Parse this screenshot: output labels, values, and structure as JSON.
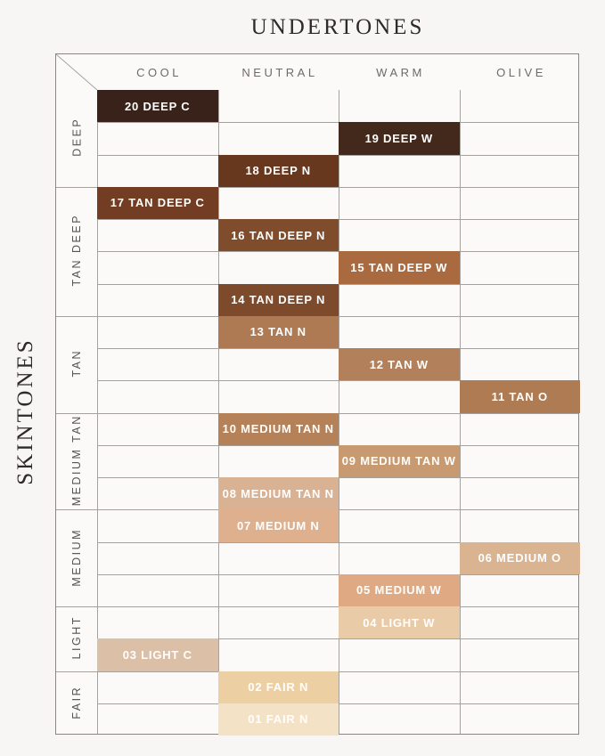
{
  "page": {
    "background": "#f7f6f4",
    "grid_line_color": "#a5a29d",
    "outer_border_color": "#8a8783"
  },
  "chart_data": {
    "type": "table",
    "title": "UNDERTONES",
    "row_axis_label": "SKINTONES",
    "columns": [
      "COOL",
      "NEUTRAL",
      "WARM",
      "OLIVE"
    ],
    "row_groups": [
      {
        "label": "DEEP",
        "rows": 3
      },
      {
        "label": "TAN DEEP",
        "rows": 4
      },
      {
        "label": "TAN",
        "rows": 3
      },
      {
        "label": "MEDIUM TAN",
        "rows": 3
      },
      {
        "label": "MEDIUM",
        "rows": 3
      },
      {
        "label": "LIGHT",
        "rows": 2
      },
      {
        "label": "FAIR",
        "rows": 2
      }
    ],
    "text_color_on_shade": "#ffffff",
    "shades": [
      {
        "row": 1,
        "column": "COOL",
        "label": "20 DEEP C",
        "color": "#38221a"
      },
      {
        "row": 2,
        "column": "WARM",
        "label": "19 DEEP W",
        "color": "#43291b"
      },
      {
        "row": 3,
        "column": "NEUTRAL",
        "label": "18 DEEP N",
        "color": "#68381e"
      },
      {
        "row": 4,
        "column": "COOL",
        "label": "17 TAN DEEP C",
        "color": "#723d22"
      },
      {
        "row": 5,
        "column": "NEUTRAL",
        "label": "16 TAN DEEP N",
        "color": "#7f4c2c"
      },
      {
        "row": 6,
        "column": "WARM",
        "label": "15 TAN DEEP W",
        "color": "#aa6a40"
      },
      {
        "row": 7,
        "column": "NEUTRAL",
        "label": "14 TAN DEEP N",
        "color": "#7d4a2b"
      },
      {
        "row": 8,
        "column": "NEUTRAL",
        "label": "13 TAN N",
        "color": "#ad7a53"
      },
      {
        "row": 9,
        "column": "WARM",
        "label": "12 TAN W",
        "color": "#b2805a"
      },
      {
        "row": 10,
        "column": "OLIVE",
        "label": "11 TAN O",
        "color": "#ae7b52"
      },
      {
        "row": 11,
        "column": "NEUTRAL",
        "label": "10 MEDIUM TAN N",
        "color": "#b48158"
      },
      {
        "row": 12,
        "column": "WARM",
        "label": "09 MEDIUM TAN W",
        "color": "#c79a72"
      },
      {
        "row": 13,
        "column": "NEUTRAL",
        "label": "08 MEDIUM TAN N",
        "color": "#d9b294"
      },
      {
        "row": 14,
        "column": "NEUTRAL",
        "label": "07 MEDIUM N",
        "color": "#dfb08d"
      },
      {
        "row": 15,
        "column": "OLIVE",
        "label": "06 MEDIUM O",
        "color": "#dab491"
      },
      {
        "row": 16,
        "column": "WARM",
        "label": "05 MEDIUM W",
        "color": "#dfaa83"
      },
      {
        "row": 17,
        "column": "WARM",
        "label": "04 LIGHT W",
        "color": "#e9cba7"
      },
      {
        "row": 18,
        "column": "COOL",
        "label": "03 LIGHT C",
        "color": "#dbc0a7"
      },
      {
        "row": 19,
        "column": "NEUTRAL",
        "label": "02 FAIR N",
        "color": "#edcfa4"
      },
      {
        "row": 20,
        "column": "NEUTRAL",
        "label": "01 FAIR N",
        "color": "#f3e2c6"
      }
    ]
  }
}
